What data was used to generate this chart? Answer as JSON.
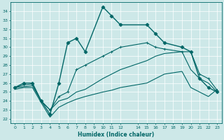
{
  "xlabel": "Humidex (Indice chaleur)",
  "bg_color": "#cde8e8",
  "grid_color": "#ffffff",
  "line_color": "#006666",
  "xlim": [
    -0.5,
    23.5
  ],
  "ylim": [
    21.5,
    35.0
  ],
  "xticks": [
    0,
    1,
    2,
    3,
    4,
    5,
    6,
    7,
    8,
    9,
    10,
    11,
    12,
    14,
    15,
    16,
    17,
    18,
    19,
    20,
    21,
    22,
    23
  ],
  "yticks": [
    22,
    23,
    24,
    25,
    26,
    27,
    28,
    29,
    30,
    31,
    32,
    33,
    34
  ],
  "series": [
    {
      "x": [
        0,
        1,
        2,
        3,
        4,
        5,
        6,
        7,
        8,
        10,
        11,
        12,
        15,
        16,
        17,
        19,
        20,
        21,
        22,
        23
      ],
      "y": [
        25.5,
        26.0,
        26.0,
        24.0,
        22.5,
        26.0,
        30.5,
        31.0,
        29.5,
        34.5,
        33.5,
        32.5,
        32.5,
        31.5,
        30.5,
        30.0,
        29.5,
        26.5,
        25.5,
        25.0
      ],
      "marker": "D",
      "markersize": 2.5,
      "linewidth": 1.0
    },
    {
      "x": [
        0,
        1,
        2,
        3,
        4,
        5,
        6,
        7,
        8,
        10,
        11,
        12,
        15,
        16,
        17,
        19,
        20,
        21,
        22,
        23
      ],
      "y": [
        25.5,
        25.8,
        25.9,
        24.0,
        23.0,
        24.5,
        25.0,
        27.5,
        28.0,
        29.0,
        29.5,
        30.0,
        30.5,
        30.0,
        29.8,
        29.5,
        29.5,
        27.0,
        26.5,
        25.2
      ],
      "marker": "+",
      "markersize": 2.5,
      "linewidth": 0.8
    },
    {
      "x": [
        0,
        1,
        2,
        3,
        4,
        5,
        6,
        7,
        8,
        10,
        11,
        12,
        15,
        16,
        17,
        19,
        20,
        21,
        22,
        23
      ],
      "y": [
        25.5,
        25.6,
        25.7,
        24.0,
        23.0,
        24.0,
        24.3,
        25.0,
        25.3,
        26.5,
        27.0,
        27.5,
        28.5,
        29.0,
        29.3,
        29.5,
        27.5,
        26.5,
        26.0,
        25.0
      ],
      "marker": null,
      "markersize": 0,
      "linewidth": 0.8
    },
    {
      "x": [
        0,
        1,
        2,
        3,
        4,
        5,
        6,
        7,
        8,
        10,
        11,
        12,
        15,
        16,
        17,
        19,
        20,
        21,
        22,
        23
      ],
      "y": [
        25.3,
        25.5,
        25.5,
        23.8,
        22.2,
        23.3,
        23.8,
        24.2,
        24.5,
        25.0,
        25.2,
        25.5,
        26.0,
        26.5,
        27.0,
        27.3,
        25.5,
        25.0,
        24.5,
        25.3
      ],
      "marker": null,
      "markersize": 0,
      "linewidth": 0.8
    }
  ]
}
